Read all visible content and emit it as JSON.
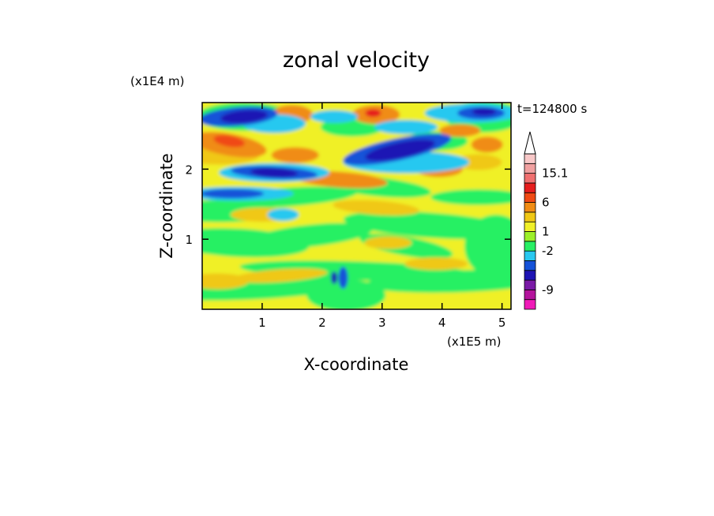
{
  "chart_data": {
    "type": "heatmap",
    "title": "zonal velocity",
    "xlabel": "X-coordinate",
    "ylabel": "Z-coordinate",
    "x_unit": "(x1E5 m)",
    "y_unit": "(x1E4 m)",
    "time_label": "t=124800 s",
    "xlim": [
      0,
      5.15
    ],
    "ylim": [
      0,
      2.95
    ],
    "x_ticks": [
      {
        "value": 1,
        "label": "1"
      },
      {
        "value": 2,
        "label": "2"
      },
      {
        "value": 3,
        "label": "3"
      },
      {
        "value": 4,
        "label": "4"
      },
      {
        "value": 5,
        "label": "5"
      }
    ],
    "y_ticks": [
      {
        "value": 1,
        "label": "1"
      },
      {
        "value": 2,
        "label": "2"
      }
    ],
    "colorbar": {
      "colors": [
        "#f01ab8",
        "#b4149c",
        "#7a1aa6",
        "#1e14b4",
        "#1452d8",
        "#28c8f0",
        "#28f064",
        "#9cf028",
        "#f0f028",
        "#f0c814",
        "#f08c14",
        "#f04a14",
        "#e61e1e",
        "#f07070",
        "#f0a0a0",
        "#f8c8c8"
      ],
      "tick_labels": [
        {
          "label": "15.1",
          "value": 15.1
        },
        {
          "label": "6",
          "value": 6
        },
        {
          "label": "1",
          "value": 1
        },
        {
          "label": "-2",
          "value": -2
        },
        {
          "label": "-9",
          "value": -9
        }
      ]
    }
  }
}
